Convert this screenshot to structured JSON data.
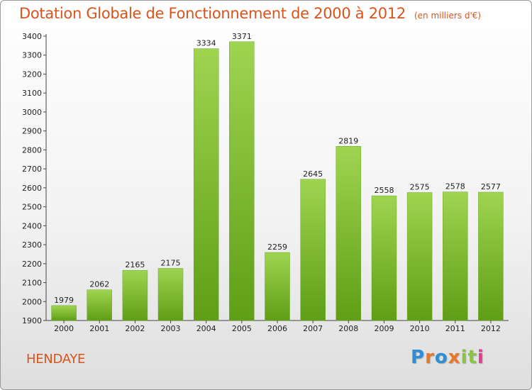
{
  "title": "Dotation Globale de Fonctionnement de 2000 à 2012",
  "subtitle": "(en milliers d'€)",
  "city": "HENDAYE",
  "logo": {
    "letters": [
      "P",
      "r",
      "o",
      "x",
      "i",
      "t",
      "i"
    ],
    "colors": [
      "#2f8fd6",
      "#e8772a",
      "#2f8fd6",
      "#e8772a",
      "#8bc34a",
      "#8bc34a",
      "#e33b8e"
    ]
  },
  "colors": {
    "bar_light": "#9fd451",
    "bar_dark": "#5f9e16",
    "accent": "#d9541c"
  },
  "chart_data": {
    "type": "bar",
    "categories": [
      "2000",
      "2001",
      "2002",
      "2003",
      "2004",
      "2005",
      "2006",
      "2007",
      "2008",
      "2009",
      "2010",
      "2011",
      "2012"
    ],
    "values": [
      1979,
      2062,
      2165,
      2175,
      3334,
      3371,
      2259,
      2645,
      2819,
      2558,
      2575,
      2578,
      2577
    ],
    "ylim": [
      1900,
      3400
    ],
    "yticks": [
      1900,
      2000,
      2100,
      2200,
      2300,
      2400,
      2500,
      2600,
      2700,
      2800,
      2900,
      3000,
      3100,
      3200,
      3300,
      3400
    ],
    "grid": false,
    "data_labels": true
  }
}
